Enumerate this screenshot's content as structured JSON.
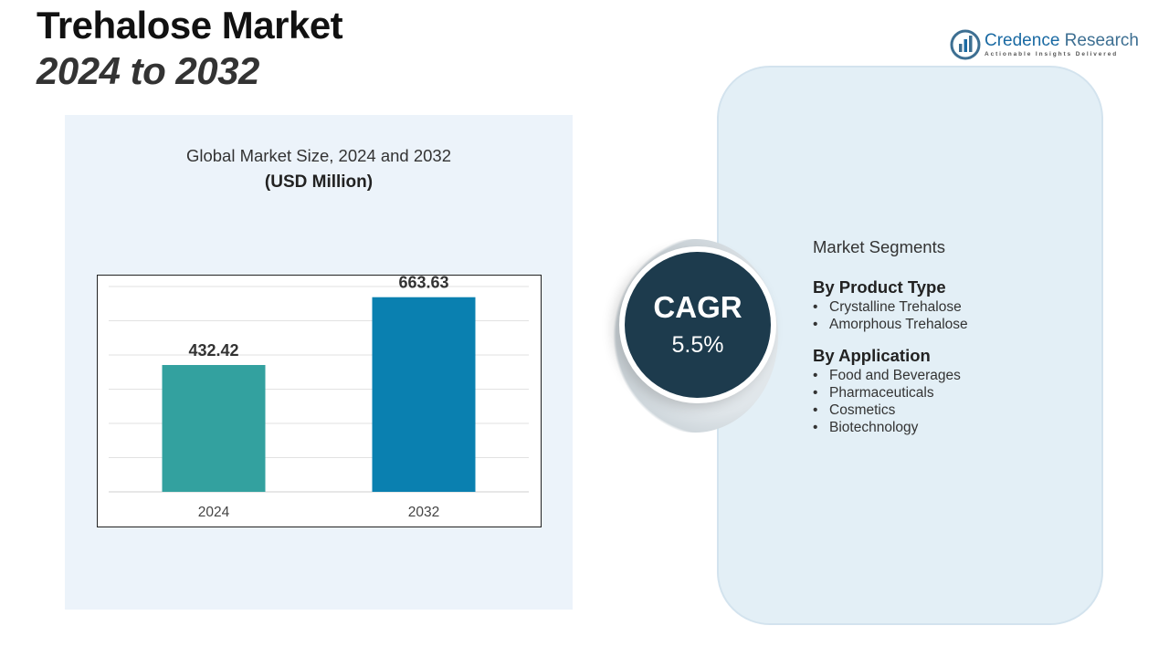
{
  "header": {
    "title_line1": "Trehalose Market",
    "title_line2": "2024 to 2032"
  },
  "logo": {
    "name_part1": "Credence",
    "name_part2": "Research",
    "tagline": "Actionable Insights Delivered"
  },
  "chart_data": {
    "type": "bar",
    "title": "Global Market Size, 2024 and 2032",
    "unit_label": "(USD Million)",
    "categories": [
      "2024",
      "2032"
    ],
    "values": [
      432.42,
      663.63
    ],
    "value_labels": [
      "432.42",
      "663.63"
    ],
    "ylim": [
      0,
      700
    ],
    "grid": true,
    "colors": [
      "#33a19f",
      "#0a80b0"
    ]
  },
  "cagr": {
    "label": "CAGR",
    "value": "5.5%"
  },
  "segments": {
    "heading": "Market Segments",
    "groups": [
      {
        "title": "By Product Type",
        "items": [
          "Crystalline Trehalose",
          "Amorphous Trehalose"
        ]
      },
      {
        "title": "By Application",
        "items": [
          "Food and Beverages",
          "Pharmaceuticals",
          "Cosmetics",
          "Biotechnology"
        ]
      }
    ]
  }
}
